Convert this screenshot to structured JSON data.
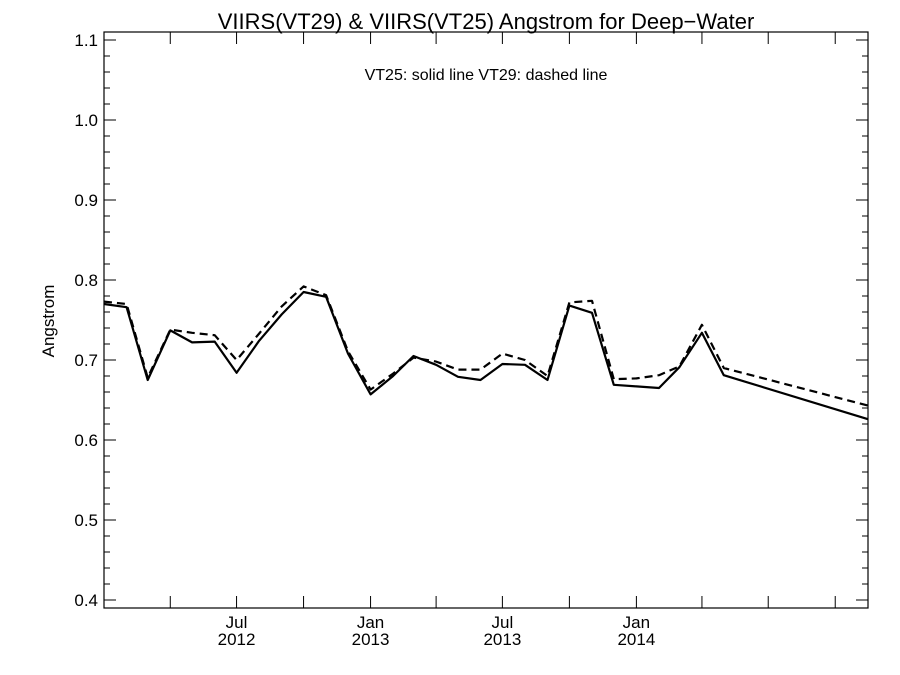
{
  "chart_data": {
    "type": "line",
    "title": "VIIRS(VT29) & VIIRS(VT25)  Angstrom for Deep−Water",
    "annotation": "VT25: solid line   VT29: dashed line",
    "xlabel": "",
    "ylabel": "Angstrom",
    "xlim": [
      "2012-01-01",
      "2014-11-15"
    ],
    "ylim": [
      0.39,
      1.11
    ],
    "yticks": [
      0.4,
      0.5,
      0.6,
      0.7,
      0.8,
      0.9,
      1.0,
      1.1
    ],
    "ytick_labels": [
      "0.4",
      "0.5",
      "0.6",
      "0.7",
      "0.8",
      "0.9",
      "1.0",
      "1.1"
    ],
    "xticks_major": [
      {
        "date": "2012-07-01",
        "line1": "Jul",
        "line2": "2012"
      },
      {
        "date": "2013-01-01",
        "line1": "Jan",
        "line2": "2013"
      },
      {
        "date": "2013-07-01",
        "line1": "Jul",
        "line2": "2013"
      },
      {
        "date": "2014-01-01",
        "line1": "Jan",
        "line2": "2014"
      }
    ],
    "xticks_minor": [
      "2012-04-01",
      "2012-10-01",
      "2013-04-01",
      "2013-10-01",
      "2014-04-01",
      "2014-07-01",
      "2014-10-01"
    ],
    "grid": false,
    "x": [
      "2012-01-01",
      "2012-02-01",
      "2012-03-01",
      "2012-04-01",
      "2012-05-01",
      "2012-06-01",
      "2012-07-01",
      "2012-08-01",
      "2012-09-01",
      "2012-10-01",
      "2012-11-01",
      "2012-12-01",
      "2013-01-01",
      "2013-02-01",
      "2013-03-01",
      "2013-04-01",
      "2013-05-01",
      "2013-06-01",
      "2013-07-01",
      "2013-08-01",
      "2013-09-01",
      "2013-10-01",
      "2013-11-01",
      "2013-12-01",
      "2014-01-01",
      "2014-02-01",
      "2014-03-01",
      "2014-04-01",
      "2014-05-01",
      "2014-11-15"
    ],
    "series": [
      {
        "name": "VT25",
        "style": "solid",
        "color": "#000000",
        "values": [
          0.77,
          0.766,
          0.675,
          0.737,
          0.722,
          0.723,
          0.684,
          0.724,
          0.757,
          0.785,
          0.779,
          0.708,
          0.657,
          0.68,
          0.705,
          0.694,
          0.679,
          0.675,
          0.695,
          0.694,
          0.675,
          0.768,
          0.759,
          0.669,
          0.667,
          0.665,
          0.691,
          0.734,
          0.681,
          0.626
        ]
      },
      {
        "name": "VT29",
        "style": "dashed",
        "color": "#000000",
        "values": [
          0.773,
          0.77,
          0.678,
          0.738,
          0.734,
          0.731,
          0.7,
          0.733,
          0.767,
          0.792,
          0.781,
          0.711,
          0.663,
          0.683,
          0.703,
          0.698,
          0.688,
          0.688,
          0.708,
          0.7,
          0.68,
          0.772,
          0.774,
          0.676,
          0.677,
          0.681,
          0.692,
          0.744,
          0.69,
          0.643
        ]
      }
    ]
  }
}
